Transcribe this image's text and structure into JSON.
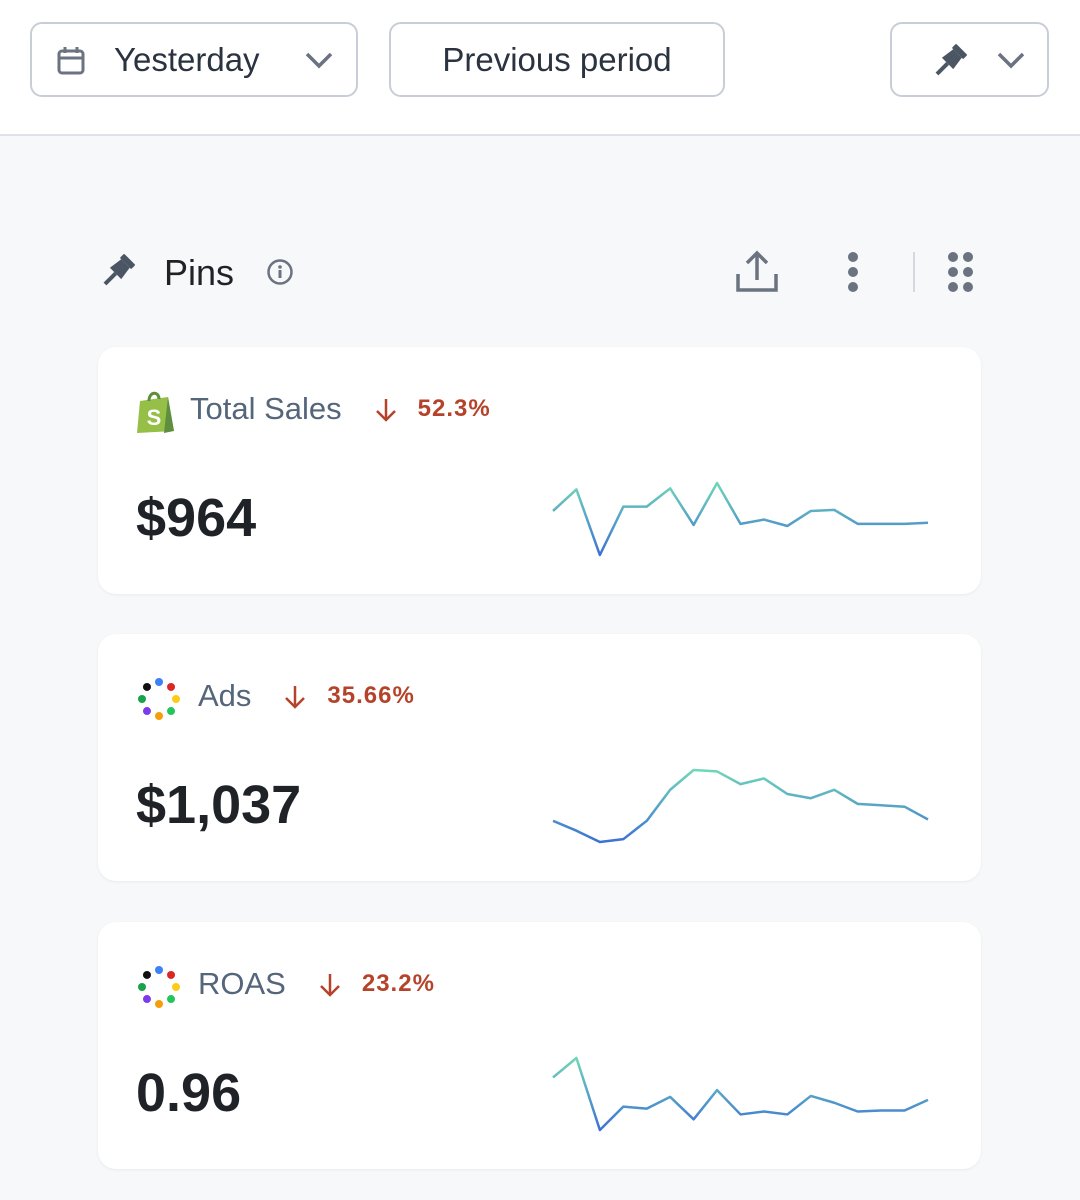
{
  "toolbar": {
    "date_range": "Yesterday",
    "compare": "Previous period"
  },
  "section": {
    "title": "Pins"
  },
  "cards": [
    {
      "title": "Total Sales",
      "change": "52.3%",
      "value": "$964",
      "sparkline": [
        50,
        70,
        9,
        54,
        54,
        71,
        37,
        76,
        38,
        42,
        36,
        50,
        51,
        38,
        38,
        38,
        39
      ]
    },
    {
      "title": "Ads",
      "change": "35.66%",
      "value": "$1,037",
      "sparkline": [
        38,
        31,
        23,
        25,
        38,
        60,
        74,
        73,
        64,
        68,
        57,
        54,
        60,
        50,
        49,
        48,
        39
      ]
    },
    {
      "title": "ROAS",
      "change": "23.2%",
      "value": "0.96",
      "sparkline": [
        63,
        83,
        9,
        33,
        31,
        43,
        20,
        50,
        25,
        28,
        25,
        44,
        37,
        28,
        29,
        29,
        40
      ]
    }
  ]
}
